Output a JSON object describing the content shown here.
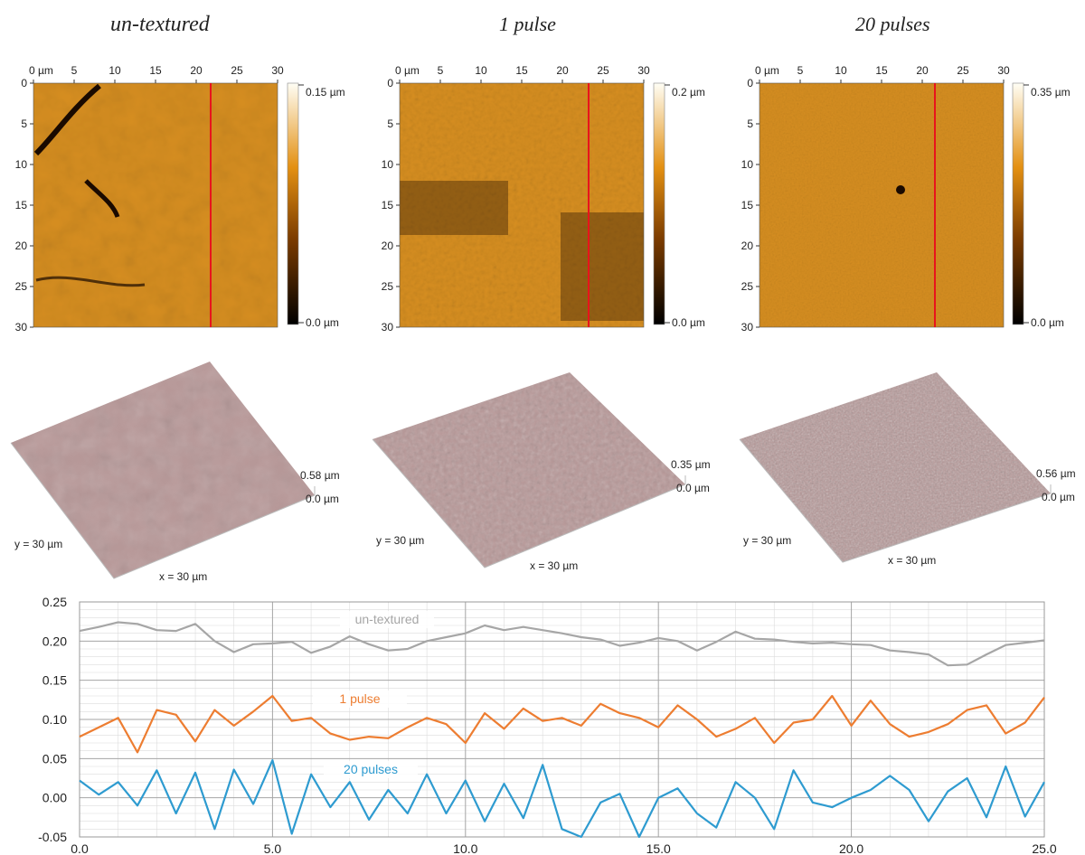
{
  "panels": [
    {
      "title": "un-textured",
      "x_ticks": [
        "0 µm",
        "5",
        "10",
        "15",
        "20",
        "25",
        "30"
      ],
      "y_ticks": [
        "0",
        "5",
        "10",
        "15",
        "20",
        "25",
        "30"
      ],
      "colorbar_max": "0.15 µm",
      "colorbar_min": "0.0 µm",
      "surface_height": "0.58 µm",
      "surface_base": "0.0 µm",
      "surface_y_label": "y = 30 µm",
      "surface_x_label": "x = 30 µm"
    },
    {
      "title": "1 pulse",
      "x_ticks": [
        "0 µm",
        "5",
        "10",
        "15",
        "20",
        "25",
        "30"
      ],
      "y_ticks": [
        "0",
        "5",
        "10",
        "15",
        "20",
        "25",
        "30"
      ],
      "colorbar_max": "0.2 µm",
      "colorbar_min": "0.0 µm",
      "surface_height": "0.35 µm",
      "surface_base": "0.0 µm",
      "surface_y_label": "y = 30 µm",
      "surface_x_label": "x = 30 µm"
    },
    {
      "title": "20 pulses",
      "x_ticks": [
        "0 µm",
        "5",
        "10",
        "15",
        "20",
        "25",
        "30"
      ],
      "y_ticks": [
        "0",
        "5",
        "10",
        "15",
        "20",
        "25",
        "30"
      ],
      "colorbar_max": "0.35 µm",
      "colorbar_min": "0.0 µm",
      "surface_height": "0.56 µm",
      "surface_base": "0.0 µm",
      "surface_y_label": "y = 30 µm",
      "surface_x_label": "x = 30 µm"
    }
  ],
  "colors": {
    "map_dark": "#1a0a00",
    "map_mid": "#c67a10",
    "map_light": "#f7b440",
    "map_bright": "#ffe6a0",
    "section_line": "#e8141c",
    "surface_fill": "#b89898",
    "surface_dark": "#3a2626",
    "series_untextured": "#a6a6a6",
    "series_1pulse": "#ed7d31",
    "series_20pulses": "#2e9bd0",
    "grid_major": "#a6a6a6",
    "grid_minor": "#dcdcdc"
  },
  "chart_data": {
    "type": "line",
    "x_range": [
      0,
      25
    ],
    "ylim": [
      -0.05,
      0.25
    ],
    "x_ticks": [
      "0.0",
      "5.0",
      "10.0",
      "15.0",
      "20.0",
      "25.0"
    ],
    "y_ticks": [
      "0.25",
      "0.20",
      "0.15",
      "0.10",
      "0.05",
      "0.00",
      "-0.05"
    ],
    "grid": true,
    "series": [
      {
        "name": "un-textured",
        "x": [
          0,
          0.5,
          1.0,
          1.5,
          2.0,
          2.5,
          3.0,
          3.5,
          4.0,
          4.5,
          5.0,
          5.5,
          6.0,
          6.5,
          7.0,
          7.5,
          8.0,
          8.5,
          9.0,
          9.5,
          10.0,
          10.5,
          11.0,
          11.5,
          12.0,
          12.5,
          13.0,
          13.5,
          14.0,
          14.5,
          15.0,
          15.5,
          16.0,
          16.5,
          17.0,
          17.5,
          18.0,
          18.5,
          19.0,
          19.5,
          20.0,
          20.5,
          21.0,
          21.5,
          22.0,
          22.5,
          23.0,
          23.5,
          24.0,
          24.5,
          25.0
        ],
        "values": [
          0.213,
          0.218,
          0.224,
          0.222,
          0.214,
          0.213,
          0.222,
          0.2,
          0.186,
          0.196,
          0.197,
          0.199,
          0.185,
          0.193,
          0.206,
          0.196,
          0.188,
          0.19,
          0.2,
          0.205,
          0.21,
          0.22,
          0.214,
          0.218,
          0.214,
          0.21,
          0.205,
          0.202,
          0.194,
          0.198,
          0.204,
          0.2,
          0.188,
          0.199,
          0.212,
          0.203,
          0.202,
          0.199,
          0.197,
          0.198,
          0.196,
          0.195,
          0.188,
          0.186,
          0.183,
          0.169,
          0.17,
          0.183,
          0.195,
          0.198,
          0.201
        ]
      },
      {
        "name": "1 pulse",
        "x": [
          0,
          0.5,
          1.0,
          1.5,
          2.0,
          2.5,
          3.0,
          3.5,
          4.0,
          4.5,
          5.0,
          5.5,
          6.0,
          6.5,
          7.0,
          7.5,
          8.0,
          8.5,
          9.0,
          9.5,
          10.0,
          10.5,
          11.0,
          11.5,
          12.0,
          12.5,
          13.0,
          13.5,
          14.0,
          14.5,
          15.0,
          15.5,
          16.0,
          16.5,
          17.0,
          17.5,
          18.0,
          18.5,
          19.0,
          19.5,
          20.0,
          20.5,
          21.0,
          21.5,
          22.0,
          22.5,
          23.0,
          23.5,
          24.0,
          24.5,
          25.0
        ],
        "values": [
          0.078,
          0.09,
          0.102,
          0.058,
          0.112,
          0.106,
          0.072,
          0.112,
          0.092,
          0.11,
          0.13,
          0.098,
          0.102,
          0.082,
          0.074,
          0.078,
          0.076,
          0.09,
          0.102,
          0.094,
          0.07,
          0.108,
          0.088,
          0.114,
          0.098,
          0.102,
          0.092,
          0.12,
          0.108,
          0.102,
          0.09,
          0.118,
          0.1,
          0.078,
          0.088,
          0.102,
          0.07,
          0.096,
          0.1,
          0.13,
          0.092,
          0.124,
          0.094,
          0.078,
          0.084,
          0.094,
          0.112,
          0.118,
          0.082,
          0.096,
          0.128
        ]
      },
      {
        "name": "20 pulses",
        "x": [
          0,
          0.5,
          1.0,
          1.5,
          2.0,
          2.5,
          3.0,
          3.5,
          4.0,
          4.5,
          5.0,
          5.5,
          6.0,
          6.5,
          7.0,
          7.5,
          8.0,
          8.5,
          9.0,
          9.5,
          10.0,
          10.5,
          11.0,
          11.5,
          12.0,
          12.5,
          13.0,
          13.5,
          14.0,
          14.5,
          15.0,
          15.5,
          16.0,
          16.5,
          17.0,
          17.5,
          18.0,
          18.5,
          19.0,
          19.5,
          20.0,
          20.5,
          21.0,
          21.5,
          22.0,
          22.5,
          23.0,
          23.5,
          24.0,
          24.5,
          25.0
        ],
        "values": [
          0.022,
          0.004,
          0.02,
          -0.01,
          0.035,
          -0.02,
          0.032,
          -0.04,
          0.036,
          -0.008,
          0.048,
          -0.046,
          0.03,
          -0.012,
          0.02,
          -0.028,
          0.01,
          -0.02,
          0.03,
          -0.02,
          0.022,
          -0.03,
          0.018,
          -0.026,
          0.042,
          -0.04,
          -0.05,
          -0.006,
          0.005,
          -0.05,
          0.0,
          0.012,
          -0.02,
          -0.038,
          0.02,
          0.0,
          -0.04,
          0.035,
          -0.006,
          -0.012,
          0.0,
          0.01,
          0.028,
          0.01,
          -0.03,
          0.008,
          0.025,
          -0.025,
          0.04,
          -0.024,
          0.02
        ]
      }
    ]
  }
}
